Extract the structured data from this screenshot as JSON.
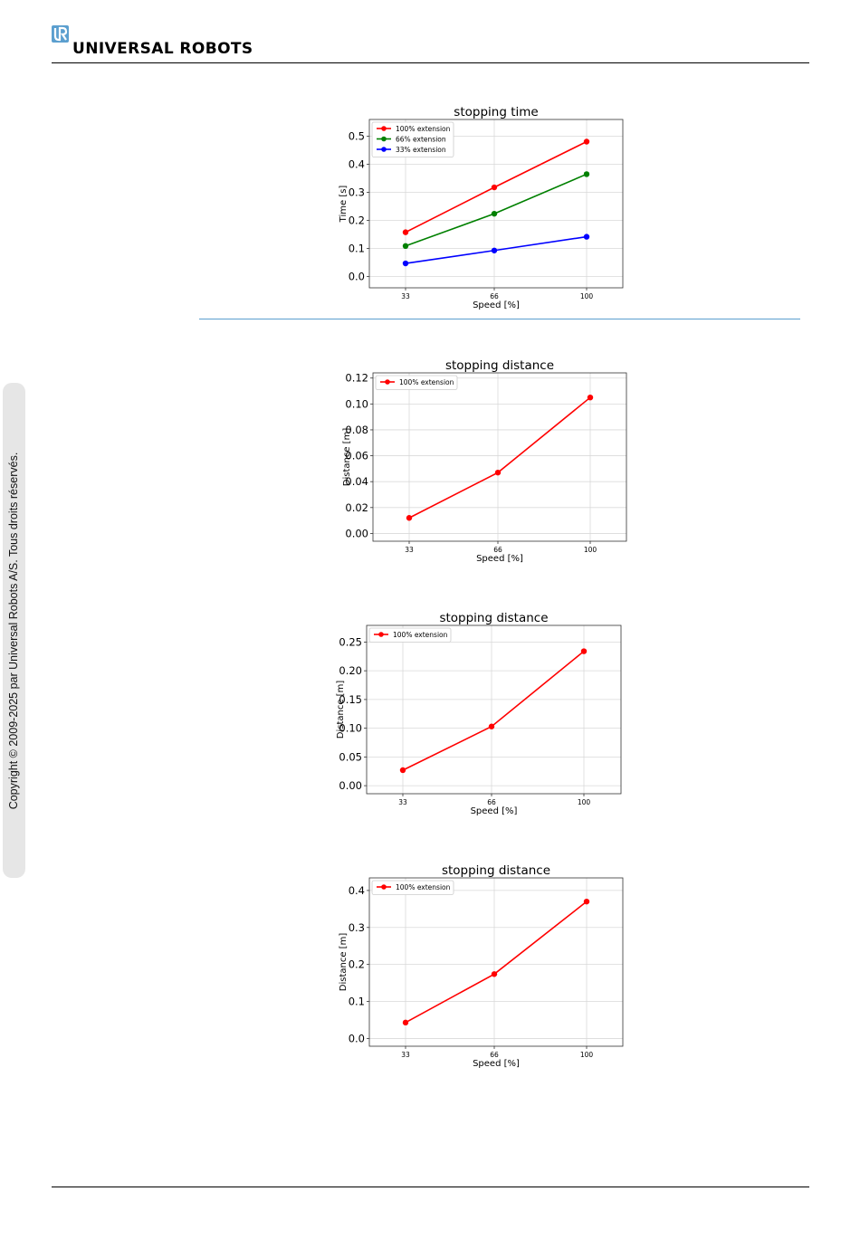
{
  "header": {
    "logo_icon": "ur-logo-icon",
    "brand_color": "#5b9fcf",
    "brand_name": "UNIVERSAL ROBOTS"
  },
  "sidebar": {
    "copyright": "Copyright © 2009-2025 par Universal Robots A/S. Tous droits réservés."
  },
  "chart_data": [
    {
      "type": "line",
      "title": "stopping time",
      "xlabel": "Speed [%]",
      "ylabel": "Time [s]",
      "categories": [
        "33",
        "66",
        "100"
      ],
      "ylim": [
        -0.04,
        0.56
      ],
      "yticks": [
        "0.0",
        "0.1",
        "0.2",
        "0.3",
        "0.4",
        "0.5"
      ],
      "grid": true,
      "legend_position": "top-left",
      "series": [
        {
          "name": "100% extension",
          "color": "#ff0000",
          "values": [
            0.158,
            0.318,
            0.481
          ]
        },
        {
          "name": "66% extension",
          "color": "#008000",
          "values": [
            0.109,
            0.224,
            0.365
          ]
        },
        {
          "name": "33% extension",
          "color": "#0000ff",
          "values": [
            0.047,
            0.093,
            0.142
          ]
        }
      ]
    },
    {
      "type": "line",
      "title": "stopping distance",
      "xlabel": "Speed [%]",
      "ylabel": "Distance [m]",
      "categories": [
        "33",
        "66",
        "100"
      ],
      "ylim": [
        -0.006,
        0.124
      ],
      "yticks": [
        "0.00",
        "0.02",
        "0.04",
        "0.06",
        "0.08",
        "0.10",
        "0.12"
      ],
      "grid": true,
      "legend_position": "top-left",
      "series": [
        {
          "name": "100% extension",
          "color": "#ff0000",
          "values": [
            0.012,
            0.047,
            0.105
          ]
        }
      ]
    },
    {
      "type": "line",
      "title": "stopping distance",
      "xlabel": "Speed [%]",
      "ylabel": "Distance [m]",
      "categories": [
        "33",
        "66",
        "100"
      ],
      "ylim": [
        -0.014,
        0.279
      ],
      "yticks": [
        "0.00",
        "0.05",
        "0.10",
        "0.15",
        "0.20",
        "0.25"
      ],
      "grid": true,
      "legend_position": "top-left",
      "series": [
        {
          "name": "100% extension",
          "color": "#ff0000",
          "values": [
            0.027,
            0.103,
            0.234
          ]
        }
      ]
    },
    {
      "type": "line",
      "title": "stopping distance",
      "xlabel": "Speed [%]",
      "ylabel": "Distance [m]",
      "categories": [
        "33",
        "66",
        "100"
      ],
      "ylim": [
        -0.021,
        0.434
      ],
      "yticks": [
        "0.0",
        "0.1",
        "0.2",
        "0.3",
        "0.4"
      ],
      "grid": true,
      "legend_position": "top-left",
      "series": [
        {
          "name": "100% extension",
          "color": "#ff0000",
          "values": [
            0.043,
            0.174,
            0.37
          ]
        }
      ]
    }
  ]
}
